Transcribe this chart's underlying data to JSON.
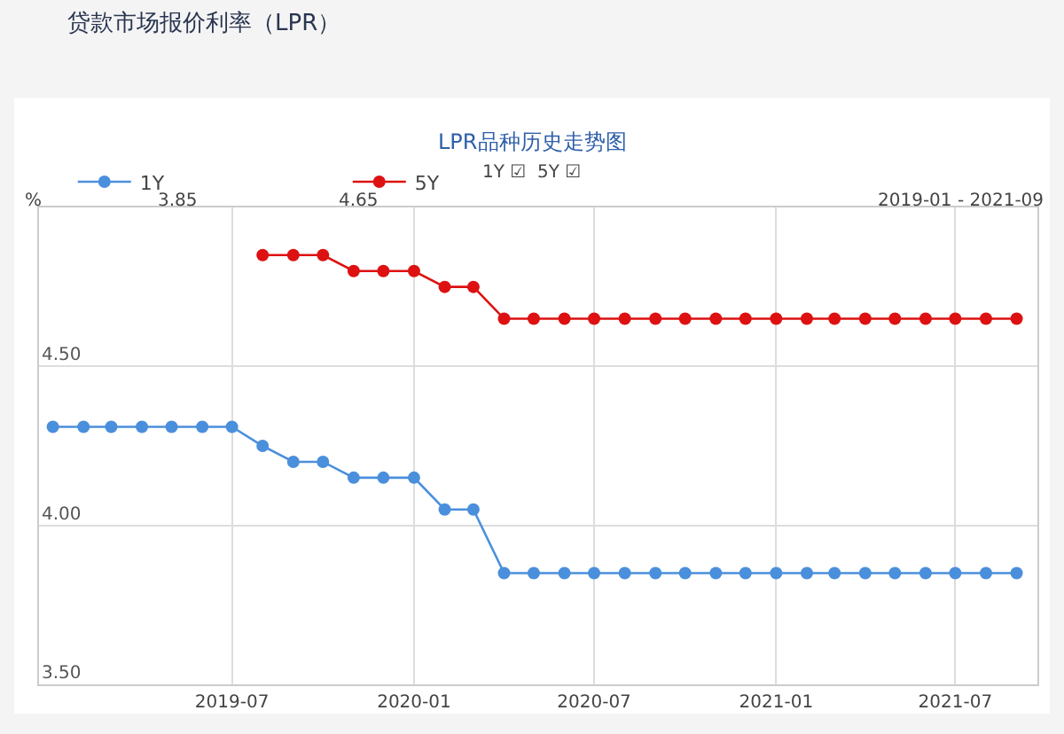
{
  "chart_data": {
    "type": "line",
    "title": "贷款市场报价利率（LPR）",
    "subtitle": "LPR品种历史走势图",
    "ylabel": "%",
    "annotations": [
      "3.85",
      "4.65",
      "2019-01 - 2021-09",
      "1Y ☑  5Y ☑"
    ],
    "series": [
      {
        "name": "1Y",
        "color": "#4a8fdc",
        "x": [
          "2019-01",
          "2019-02",
          "2019-03",
          "2019-04",
          "2019-05",
          "2019-06",
          "2019-07",
          "2019-08",
          "2019-09",
          "2019-10",
          "2019-11",
          "2019-12",
          "2020-01",
          "2020-02",
          "2020-03",
          "2020-04",
          "2020-05",
          "2020-06",
          "2020-07",
          "2020-08",
          "2020-09",
          "2020-10",
          "2020-11",
          "2020-12",
          "2021-01",
          "2021-02",
          "2021-03",
          "2021-04",
          "2021-05",
          "2021-06",
          "2021-07",
          "2021-08",
          "2021-09"
        ],
        "values": [
          4.31,
          4.31,
          4.31,
          4.31,
          4.31,
          4.31,
          4.31,
          4.25,
          4.2,
          4.2,
          4.15,
          4.15,
          4.15,
          4.05,
          4.05,
          3.85,
          3.85,
          3.85,
          3.85,
          3.85,
          3.85,
          3.85,
          3.85,
          3.85,
          3.85,
          3.85,
          3.85,
          3.85,
          3.85,
          3.85,
          3.85,
          3.85,
          3.85
        ]
      },
      {
        "name": "5Y",
        "color": "#dd1111",
        "x": [
          "2019-08",
          "2019-09",
          "2019-10",
          "2019-11",
          "2019-12",
          "2020-01",
          "2020-02",
          "2020-03",
          "2020-04",
          "2020-05",
          "2020-06",
          "2020-07",
          "2020-08",
          "2020-09",
          "2020-10",
          "2020-11",
          "2020-12",
          "2021-01",
          "2021-02",
          "2021-03",
          "2021-04",
          "2021-05",
          "2021-06",
          "2021-07",
          "2021-08",
          "2021-09"
        ],
        "values": [
          4.85,
          4.85,
          4.85,
          4.8,
          4.8,
          4.8,
          4.75,
          4.75,
          4.65,
          4.65,
          4.65,
          4.65,
          4.65,
          4.65,
          4.65,
          4.65,
          4.65,
          4.65,
          4.65,
          4.65,
          4.65,
          4.65,
          4.65,
          4.65,
          4.65,
          4.65
        ]
      }
    ],
    "xlim": [
      "2018-12-18",
      "2021-09-22"
    ],
    "xticks": [
      {
        "value": "2019-07",
        "label": "2019-07"
      },
      {
        "value": "2020-01",
        "label": "2020-01"
      },
      {
        "value": "2020-07",
        "label": "2020-07"
      },
      {
        "value": "2021-01",
        "label": "2021-01"
      },
      {
        "value": "2021-07",
        "label": "2021-07"
      }
    ],
    "ylim": [
      3.5,
      5.0
    ],
    "yticks": [
      {
        "value": 3.5,
        "label": "3.50"
      },
      {
        "value": 4.0,
        "label": "4.00"
      },
      {
        "value": 4.5,
        "label": "4.50"
      }
    ],
    "grid": true,
    "legend": "top left",
    "marker": "circle",
    "line_style": "solid"
  }
}
